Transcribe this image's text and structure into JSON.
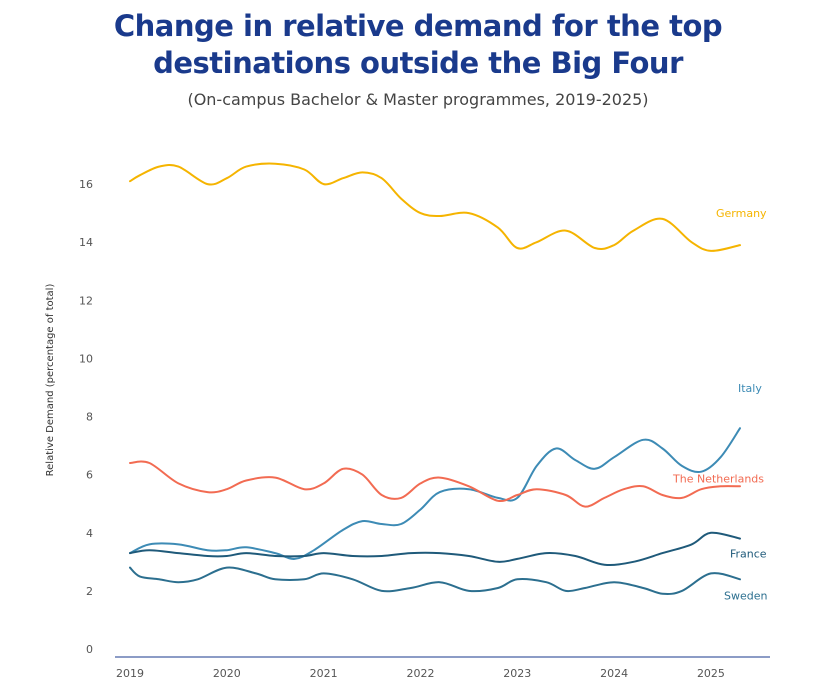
{
  "chart_data": {
    "type": "line",
    "title_line1": "Change in relative demand for the top",
    "title_line2": "destinations outside the Big Four",
    "subtitle": "(On-campus Bachelor & Master programmes, 2019-2025)",
    "ylabel": "Relative Demand (percentage of total)",
    "xlabel": "",
    "ylim": [
      0,
      17
    ],
    "xlim": [
      2019,
      2025.3
    ],
    "yticks": [
      "0",
      "2",
      "4",
      "6",
      "8",
      "10",
      "12",
      "14",
      "16"
    ],
    "xticks": [
      "2019",
      "2020",
      "2021",
      "2022",
      "2023",
      "2024",
      "2025"
    ],
    "grid": false,
    "series": [
      {
        "name": "Germany",
        "color": "#f5b400",
        "x": [
          2019,
          2019.1,
          2019.3,
          2019.5,
          2019.8,
          2020,
          2020.2,
          2020.5,
          2020.8,
          2021,
          2021.2,
          2021.4,
          2021.6,
          2021.8,
          2022,
          2022.2,
          2022.5,
          2022.8,
          2023,
          2023.2,
          2023.5,
          2023.8,
          2024,
          2024.2,
          2024.5,
          2024.8,
          2025,
          2025.3
        ],
        "values": [
          16.1,
          16.3,
          16.6,
          16.6,
          16.0,
          16.2,
          16.6,
          16.7,
          16.5,
          16.0,
          16.2,
          16.4,
          16.2,
          15.5,
          15.0,
          14.9,
          15.0,
          14.5,
          13.8,
          14.0,
          14.4,
          13.8,
          13.9,
          14.4,
          14.8,
          14.0,
          13.7,
          13.9
        ]
      },
      {
        "name": "Italy",
        "color": "#3d8bb5",
        "x": [
          2019,
          2019.2,
          2019.5,
          2019.8,
          2020,
          2020.2,
          2020.5,
          2020.7,
          2020.9,
          2021.2,
          2021.4,
          2021.6,
          2021.8,
          2022,
          2022.2,
          2022.5,
          2022.8,
          2023,
          2023.2,
          2023.4,
          2023.6,
          2023.8,
          2024,
          2024.3,
          2024.5,
          2024.7,
          2024.9,
          2025.1,
          2025.3
        ],
        "values": [
          3.3,
          3.6,
          3.6,
          3.4,
          3.4,
          3.5,
          3.3,
          3.1,
          3.4,
          4.1,
          4.4,
          4.3,
          4.3,
          4.8,
          5.4,
          5.5,
          5.2,
          5.2,
          6.3,
          6.9,
          6.5,
          6.2,
          6.6,
          7.2,
          6.9,
          6.3,
          6.1,
          6.6,
          7.6
        ]
      },
      {
        "name": "The Netherlands",
        "color": "#f26b52",
        "x": [
          2019,
          2019.2,
          2019.5,
          2019.8,
          2020,
          2020.2,
          2020.5,
          2020.8,
          2021,
          2021.2,
          2021.4,
          2021.6,
          2021.8,
          2022,
          2022.2,
          2022.5,
          2022.8,
          2023,
          2023.2,
          2023.5,
          2023.7,
          2023.9,
          2024.1,
          2024.3,
          2024.5,
          2024.7,
          2024.9,
          2025.1,
          2025.3
        ],
        "values": [
          6.4,
          6.4,
          5.7,
          5.4,
          5.5,
          5.8,
          5.9,
          5.5,
          5.7,
          6.2,
          6.0,
          5.3,
          5.2,
          5.7,
          5.9,
          5.6,
          5.1,
          5.3,
          5.5,
          5.3,
          4.9,
          5.2,
          5.5,
          5.6,
          5.3,
          5.2,
          5.5,
          5.6,
          5.6
        ]
      },
      {
        "name": "France",
        "color": "#1f5a7a",
        "x": [
          2019,
          2019.2,
          2019.5,
          2019.8,
          2020,
          2020.2,
          2020.5,
          2020.8,
          2021,
          2021.3,
          2021.6,
          2021.9,
          2022.2,
          2022.5,
          2022.8,
          2023,
          2023.3,
          2023.6,
          2023.9,
          2024.2,
          2024.5,
          2024.8,
          2025,
          2025.3
        ],
        "values": [
          3.3,
          3.4,
          3.3,
          3.2,
          3.2,
          3.3,
          3.2,
          3.2,
          3.3,
          3.2,
          3.2,
          3.3,
          3.3,
          3.2,
          3.0,
          3.1,
          3.3,
          3.2,
          2.9,
          3.0,
          3.3,
          3.6,
          4.0,
          3.8
        ]
      },
      {
        "name": "Sweden",
        "color": "#2c6f8f",
        "x": [
          2019,
          2019.1,
          2019.3,
          2019.5,
          2019.7,
          2020,
          2020.3,
          2020.5,
          2020.8,
          2021,
          2021.3,
          2021.6,
          2021.9,
          2022.2,
          2022.5,
          2022.8,
          2023,
          2023.3,
          2023.5,
          2023.7,
          2024,
          2024.3,
          2024.5,
          2024.7,
          2025,
          2025.3
        ],
        "values": [
          2.8,
          2.5,
          2.4,
          2.3,
          2.4,
          2.8,
          2.6,
          2.4,
          2.4,
          2.6,
          2.4,
          2.0,
          2.1,
          2.3,
          2.0,
          2.1,
          2.4,
          2.3,
          2.0,
          2.1,
          2.3,
          2.1,
          1.9,
          2.0,
          2.6,
          2.4
        ]
      }
    ]
  }
}
